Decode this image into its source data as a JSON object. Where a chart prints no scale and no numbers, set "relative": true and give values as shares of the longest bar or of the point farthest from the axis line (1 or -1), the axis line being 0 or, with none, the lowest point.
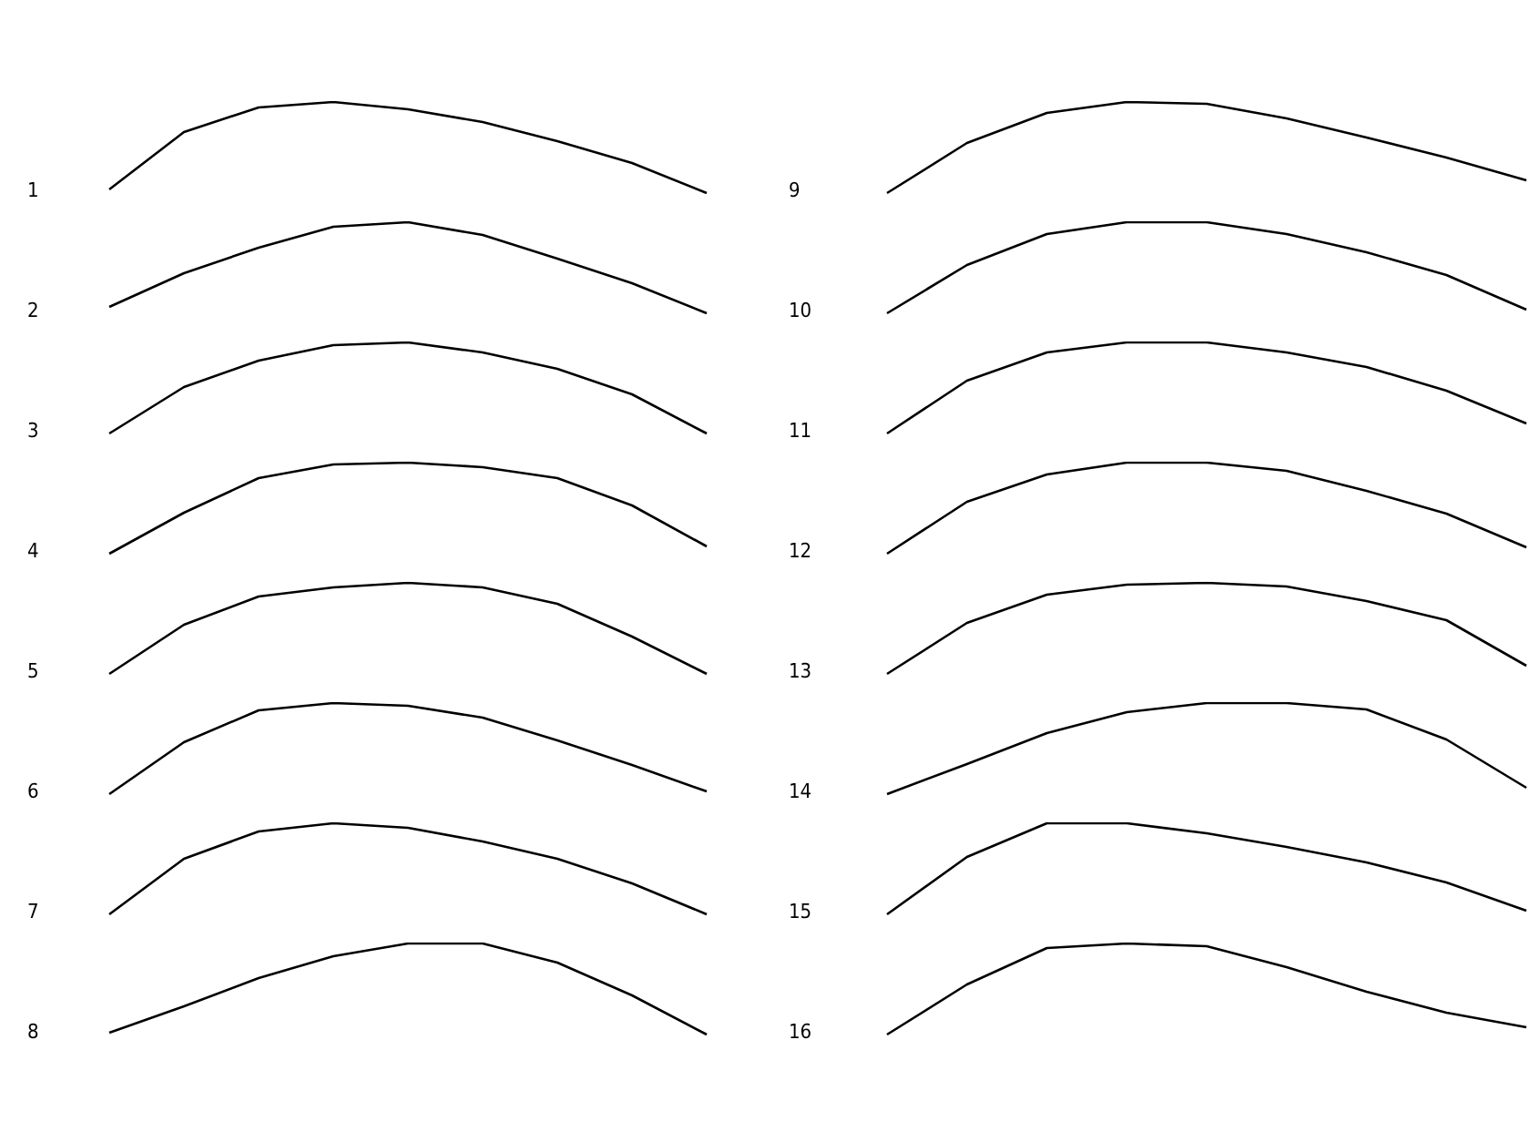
{
  "chart_data": [
    {
      "type": "line",
      "title": "1",
      "categories": [
        null,
        null,
        null,
        null,
        null,
        null,
        null,
        null,
        null
      ],
      "values": [
        0.04,
        0.67,
        0.94,
        1,
        0.92,
        0.78,
        0.57,
        0.33,
        0
      ],
      "color": "#000000",
      "relative": true
    },
    {
      "type": "line",
      "title": "2",
      "categories": [
        null,
        null,
        null,
        null,
        null,
        null,
        null,
        null,
        null
      ],
      "values": [
        0.07,
        0.44,
        0.72,
        0.95,
        1,
        0.86,
        0.6,
        0.33,
        0
      ],
      "color": "#000000",
      "relative": true
    },
    {
      "type": "line",
      "title": "3",
      "categories": [
        null,
        null,
        null,
        null,
        null,
        null,
        null,
        null,
        null
      ],
      "values": [
        0,
        0.51,
        0.8,
        0.97,
        1,
        0.89,
        0.71,
        0.43,
        0
      ],
      "color": "#000000",
      "relative": true
    },
    {
      "type": "line",
      "title": "4",
      "categories": [
        null,
        null,
        null,
        null,
        null,
        null,
        null,
        null,
        null
      ],
      "values": [
        0,
        0.45,
        0.83,
        0.98,
        1,
        0.95,
        0.83,
        0.53,
        0.08
      ],
      "color": "#000000",
      "relative": true
    },
    {
      "type": "line",
      "title": "5",
      "categories": [
        null,
        null,
        null,
        null,
        null,
        null,
        null,
        null,
        null
      ],
      "values": [
        0,
        0.54,
        0.85,
        0.95,
        1,
        0.95,
        0.77,
        0.41,
        0
      ],
      "color": "#000000",
      "relative": true
    },
    {
      "type": "line",
      "title": "6",
      "categories": [
        null,
        null,
        null,
        null,
        null,
        null,
        null,
        null,
        null
      ],
      "values": [
        0,
        0.57,
        0.92,
        1,
        0.97,
        0.84,
        0.59,
        0.32,
        0.03
      ],
      "color": "#000000",
      "relative": true
    },
    {
      "type": "line",
      "title": "7",
      "categories": [
        null,
        null,
        null,
        null,
        null,
        null,
        null,
        null,
        null
      ],
      "values": [
        0,
        0.61,
        0.91,
        1,
        0.95,
        0.8,
        0.61,
        0.34,
        0
      ],
      "color": "#000000",
      "relative": true
    },
    {
      "type": "line",
      "title": "8",
      "categories": [
        null,
        null,
        null,
        null,
        null,
        null,
        null,
        null,
        null
      ],
      "values": [
        0.02,
        0.31,
        0.62,
        0.86,
        1,
        1,
        0.79,
        0.43,
        0
      ],
      "color": "#000000",
      "relative": true
    },
    {
      "type": "line",
      "title": "9",
      "categories": [
        null,
        null,
        null,
        null,
        null,
        null,
        null,
        null,
        null
      ],
      "values": [
        0,
        0.55,
        0.88,
        1,
        0.98,
        0.82,
        0.61,
        0.39,
        0.14
      ],
      "color": "#000000",
      "relative": true
    },
    {
      "type": "line",
      "title": "10",
      "categories": [
        null,
        null,
        null,
        null,
        null,
        null,
        null,
        null,
        null
      ],
      "values": [
        0,
        0.53,
        0.87,
        1,
        1,
        0.87,
        0.67,
        0.42,
        0.04
      ],
      "color": "#000000",
      "relative": true
    },
    {
      "type": "line",
      "title": "11",
      "categories": [
        null,
        null,
        null,
        null,
        null,
        null,
        null,
        null,
        null
      ],
      "values": [
        0,
        0.58,
        0.89,
        1,
        1,
        0.89,
        0.73,
        0.47,
        0.11
      ],
      "color": "#000000",
      "relative": true
    },
    {
      "type": "line",
      "title": "12",
      "categories": [
        null,
        null,
        null,
        null,
        null,
        null,
        null,
        null,
        null
      ],
      "values": [
        0,
        0.57,
        0.87,
        1,
        1,
        0.91,
        0.69,
        0.44,
        0.07
      ],
      "color": "#000000",
      "relative": true
    },
    {
      "type": "line",
      "title": "13",
      "categories": [
        null,
        null,
        null,
        null,
        null,
        null,
        null,
        null,
        null
      ],
      "values": [
        0,
        0.56,
        0.87,
        0.98,
        1,
        0.96,
        0.8,
        0.59,
        0.09
      ],
      "color": "#000000",
      "relative": true
    },
    {
      "type": "line",
      "title": "14",
      "categories": [
        null,
        null,
        null,
        null,
        null,
        null,
        null,
        null,
        null
      ],
      "values": [
        0,
        0.33,
        0.67,
        0.9,
        1,
        1,
        0.93,
        0.6,
        0.07
      ],
      "color": "#000000",
      "relative": true
    },
    {
      "type": "line",
      "title": "15",
      "categories": [
        null,
        null,
        null,
        null,
        null,
        null,
        null,
        null,
        null
      ],
      "values": [
        0,
        0.63,
        1,
        1,
        0.89,
        0.74,
        0.57,
        0.35,
        0.04
      ],
      "color": "#000000",
      "relative": true
    },
    {
      "type": "line",
      "title": "16",
      "categories": [
        null,
        null,
        null,
        null,
        null,
        null,
        null,
        null,
        null
      ],
      "values": [
        0,
        0.55,
        0.95,
        1,
        0.97,
        0.74,
        0.47,
        0.24,
        0.08
      ],
      "color": "#000000",
      "relative": true
    }
  ]
}
